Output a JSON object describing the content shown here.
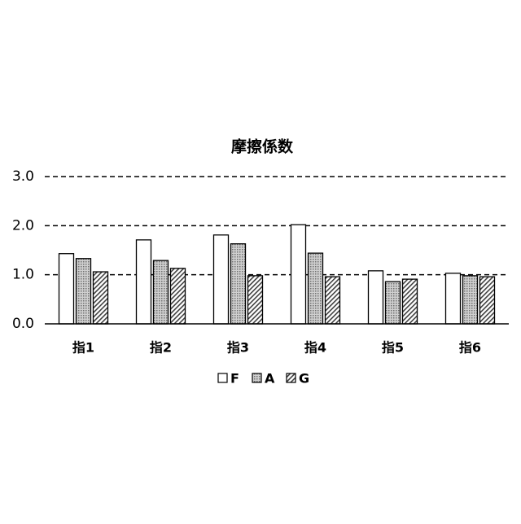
{
  "chart_data": {
    "type": "bar",
    "title": "摩擦係数",
    "categories": [
      "指1",
      "指2",
      "指3",
      "指4",
      "指5",
      "指6"
    ],
    "series": [
      {
        "name": "F",
        "color": "#ffffff",
        "pattern": "solid",
        "values": [
          1.43,
          1.71,
          1.81,
          2.02,
          1.08,
          1.03
        ]
      },
      {
        "name": "A",
        "color": "#a6a6a6",
        "pattern": "dots",
        "values": [
          1.33,
          1.29,
          1.63,
          1.44,
          0.86,
          0.98
        ]
      },
      {
        "name": "G",
        "color": "#404040",
        "pattern": "hatch",
        "values": [
          1.06,
          1.13,
          0.98,
          0.96,
          0.91,
          0.96
        ]
      }
    ],
    "ylim": [
      0,
      3
    ],
    "yticks": [
      {
        "value": 0,
        "label": "0.0"
      },
      {
        "value": 1,
        "label": "1.0"
      },
      {
        "value": 2,
        "label": "2.0"
      },
      {
        "value": 3,
        "label": "3.0"
      }
    ],
    "grid": true,
    "legend": "bottom"
  }
}
